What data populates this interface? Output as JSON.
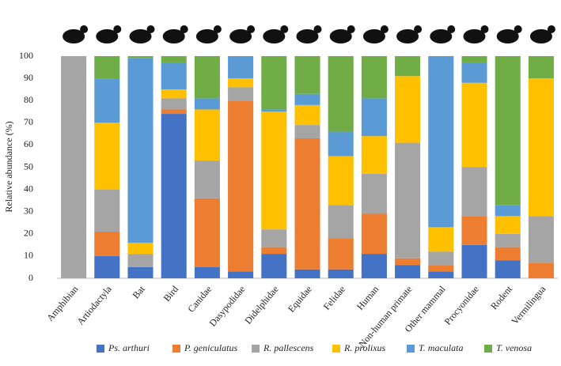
{
  "chart_data": {
    "type": "stacked_bar",
    "y_label": "Relative abundance (%)",
    "categories": [
      "Amphibian",
      "Artiodactyla",
      "Bat",
      "Bird",
      "Canidae",
      "Dasypodidae",
      "Didelphidae",
      "Equidae",
      "Felidae",
      "Human",
      "Non-human primate",
      "Other mammal",
      "Procyonidae",
      "Rodent",
      "Vermilingua"
    ],
    "series": [
      {
        "name": "Ps. arthuri",
        "color": "#4472c4",
        "values": [
          0,
          10,
          5,
          74,
          5,
          3,
          11,
          4,
          4,
          11,
          6,
          3,
          15,
          8,
          0
        ]
      },
      {
        "name": "P. geniculatus",
        "color": "#ed7d31",
        "values": [
          0,
          11,
          0,
          2,
          31,
          77,
          3,
          59,
          14,
          18,
          3,
          3,
          13,
          6,
          7
        ]
      },
      {
        "name": "R. pallescens",
        "color": "#a5a5a5",
        "values": [
          100,
          19,
          6,
          5,
          17,
          6,
          8,
          6,
          15,
          18,
          52,
          6,
          22,
          6,
          21
        ]
      },
      {
        "name": "R. prolixus",
        "color": "#ffc000",
        "values": [
          0,
          30,
          5,
          4,
          23,
          4,
          53,
          9,
          22,
          17,
          30,
          11,
          38,
          8,
          62
        ]
      },
      {
        "name": "T. maculata",
        "color": "#5b9bd5",
        "values": [
          0,
          20,
          83,
          12,
          5,
          10,
          1,
          5,
          11,
          17,
          0,
          77,
          9,
          5,
          0
        ]
      },
      {
        "name": "T. venosa",
        "color": "#70ad47",
        "values": [
          0,
          10,
          1,
          3,
          19,
          0,
          24,
          17,
          34,
          19,
          9,
          0,
          3,
          67,
          10
        ]
      }
    ],
    "ylim": [
      0,
      100
    ],
    "yticks": [
      0,
      10,
      20,
      30,
      40,
      50,
      60,
      70,
      80,
      90,
      100
    ],
    "grid": false,
    "legend": "bottom"
  }
}
